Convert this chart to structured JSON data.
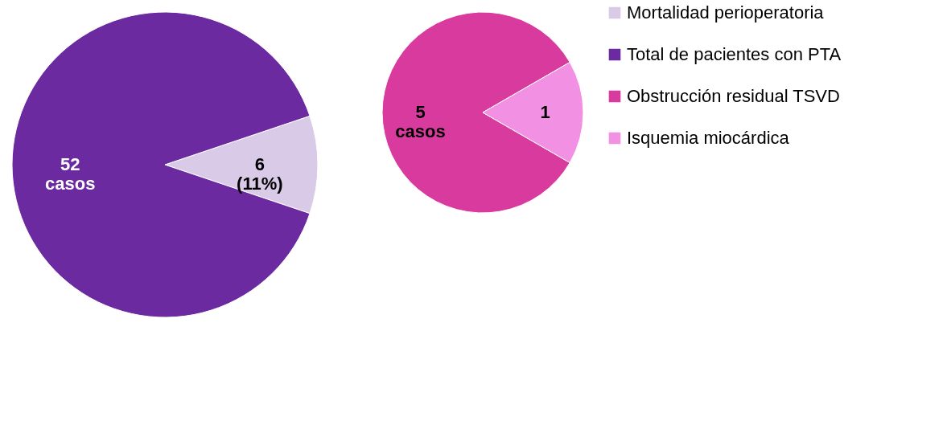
{
  "chart_data": [
    {
      "type": "pie",
      "categories": [
        "Mortalidad perioperatoria",
        "Total de pacientes con PTA"
      ],
      "values": [
        6,
        52
      ],
      "colors": [
        "#d9cbe8",
        "#6c2aa0"
      ],
      "value_labels": [
        "6 (11%)",
        "52 casos"
      ],
      "legend": "right"
    },
    {
      "type": "pie",
      "categories": [
        "Obstrucción residual TSVD",
        "Isquemia miocárdica"
      ],
      "values": [
        5,
        1
      ],
      "colors": [
        "#d93a9e",
        "#f291e3"
      ],
      "value_labels": [
        "5 casos",
        "1"
      ],
      "legend": "right"
    }
  ]
}
